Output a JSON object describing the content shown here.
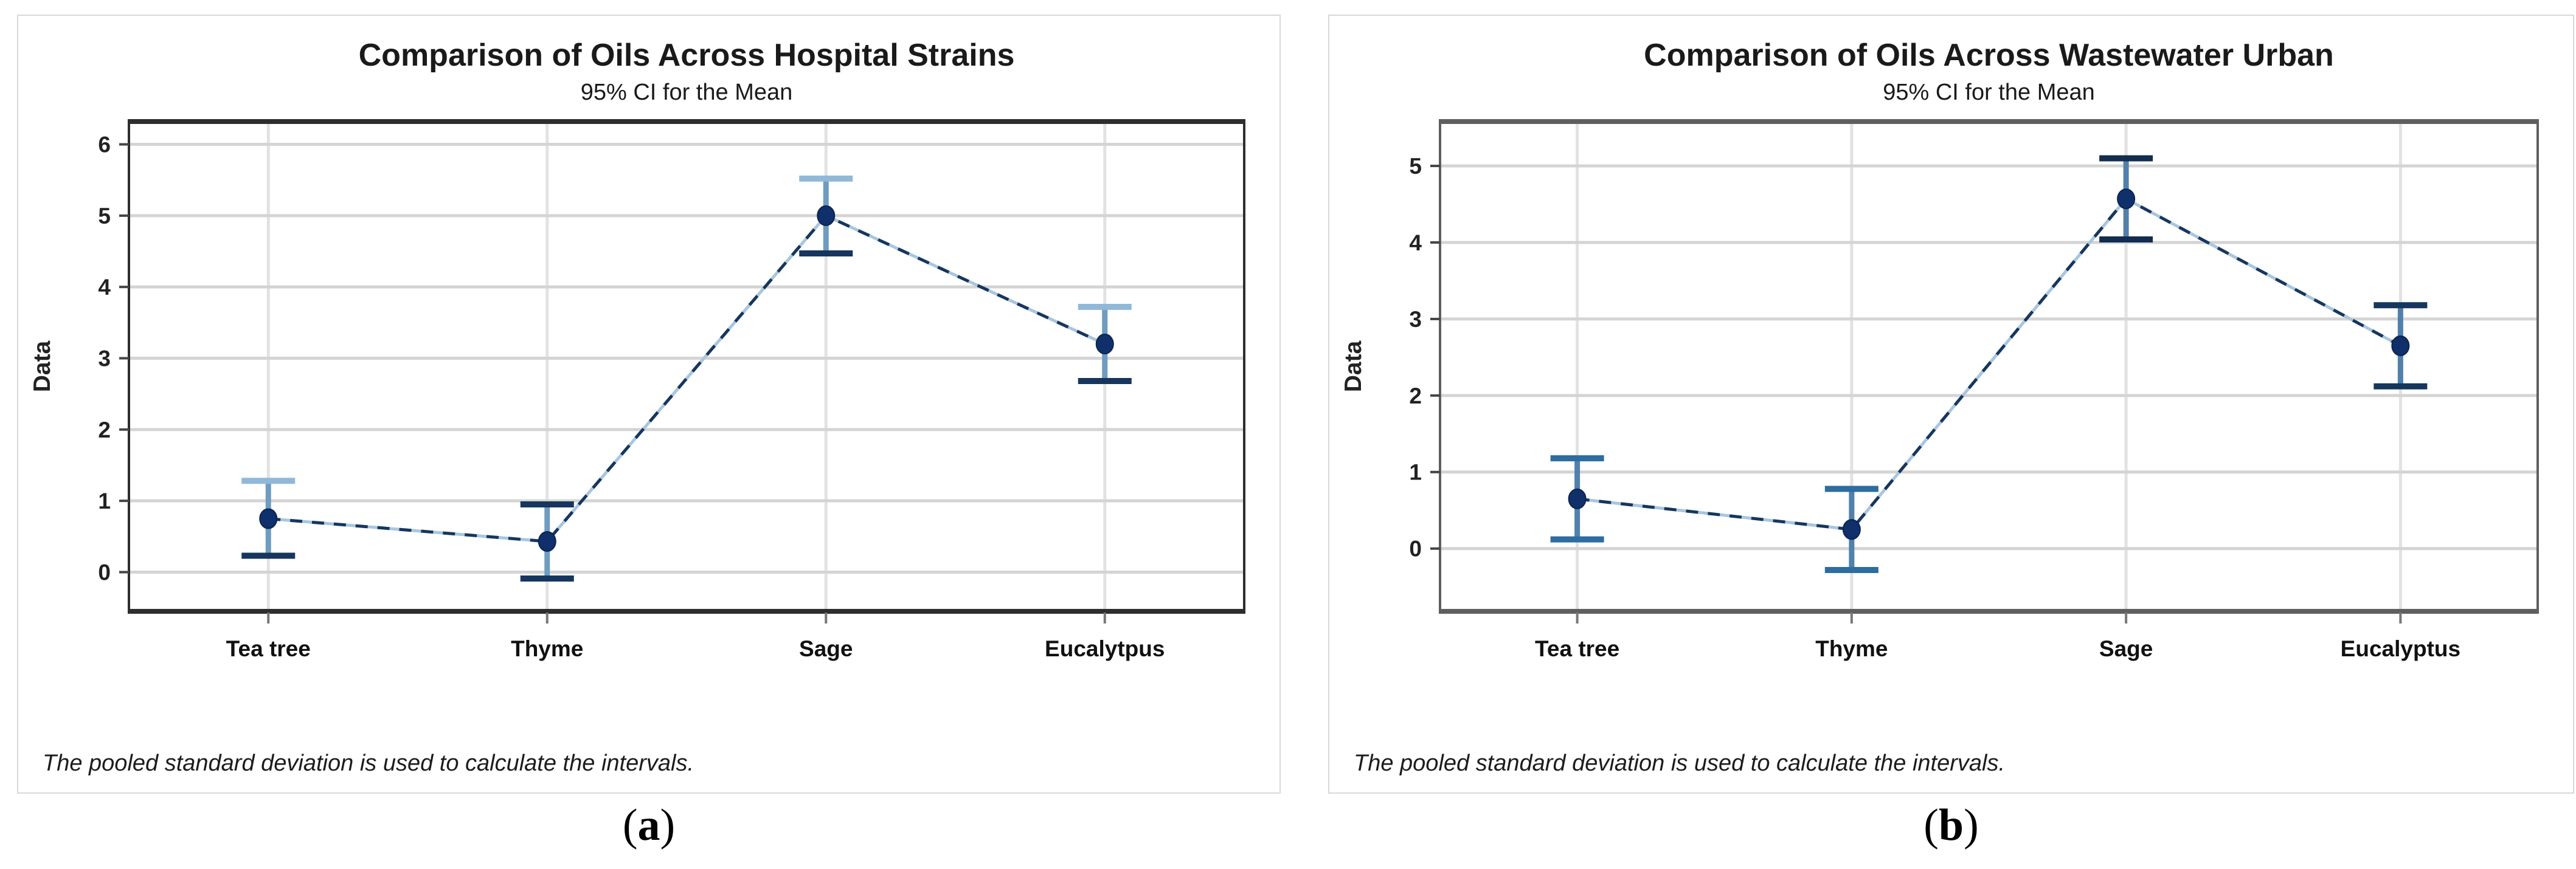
{
  "figure": {
    "background": "#ffffff",
    "footnote": "The pooled standard deviation is used to calculate the intervals."
  },
  "chart_data": [
    {
      "type": "line",
      "title": "Comparison of Oils Across Hospital Strains",
      "subtitle": "95% CI for the Mean",
      "xlabel": "",
      "ylabel": "Data",
      "footnote": "The pooled standard deviation is used to calculate the intervals.",
      "panel_label": {
        "open": "(",
        "letter": "a",
        "close": ")"
      },
      "categories": [
        "Tea tree",
        "Thyme",
        "Sage",
        "Eucalytpus"
      ],
      "series": [
        {
          "name": "Mean",
          "values": [
            0.75,
            0.43,
            5.0,
            3.2
          ]
        },
        {
          "name": "95% CI lower",
          "values": [
            0.23,
            -0.09,
            4.47,
            2.68
          ]
        },
        {
          "name": "95% CI upper",
          "values": [
            1.28,
            0.95,
            5.52,
            3.72
          ]
        }
      ],
      "yticks": [
        0,
        1,
        2,
        3,
        4,
        5,
        6
      ],
      "ylim": [
        -0.55,
        6.32
      ],
      "grid": true,
      "legend": false,
      "style": {
        "frame_color": "#2e2e2e",
        "grid_color": "#d4d4d4",
        "cat_grid_color": "#e2e2e2",
        "interval_color": "#6f9cbf",
        "cap_colors_top": [
          "#92b8d8",
          "#16365e",
          "#92b8d8",
          "#92b8d8"
        ],
        "cap_colors_bottom": [
          "#16365e",
          "#16365e",
          "#16365e",
          "#16365e"
        ],
        "marker_color": "#10306b",
        "connector_dark": "#16365e",
        "connector_light": "#a9c6de",
        "tick_text_color": "#222222",
        "category_text_color": "#111111"
      }
    },
    {
      "type": "line",
      "title": "Comparison of Oils Across Wastewater Urban",
      "subtitle": "95% CI for the Mean",
      "xlabel": "",
      "ylabel": "Data",
      "footnote": "The pooled standard deviation is used to calculate the intervals.",
      "panel_label": {
        "open": "(",
        "letter": "b",
        "close": ")"
      },
      "categories": [
        "Tea tree",
        "Thyme",
        "Sage",
        "Eucalyptus"
      ],
      "series": [
        {
          "name": "Mean",
          "values": [
            0.65,
            0.25,
            4.57,
            2.65
          ]
        },
        {
          "name": "95% CI lower",
          "values": [
            0.12,
            -0.28,
            4.04,
            2.12
          ]
        },
        {
          "name": "95% CI upper",
          "values": [
            1.18,
            0.78,
            5.1,
            3.18
          ]
        }
      ],
      "yticks": [
        0,
        1,
        2,
        3,
        4,
        5
      ],
      "ylim": [
        -0.82,
        5.58
      ],
      "grid": true,
      "legend": false,
      "style": {
        "frame_color": "#5f5f5f",
        "grid_color": "#d4d4d4",
        "cat_grid_color": "#e2e2e2",
        "interval_color": "#4f81ab",
        "cap_colors_top": [
          "#2d6da0",
          "#2d6da0",
          "#122c52",
          "#16365e"
        ],
        "cap_colors_bottom": [
          "#2d6da0",
          "#2d6da0",
          "#122c52",
          "#16365e"
        ],
        "marker_color": "#10306b",
        "connector_dark": "#16365e",
        "connector_light": "#a9c6de",
        "tick_text_color": "#222222",
        "category_text_color": "#111111"
      }
    }
  ]
}
